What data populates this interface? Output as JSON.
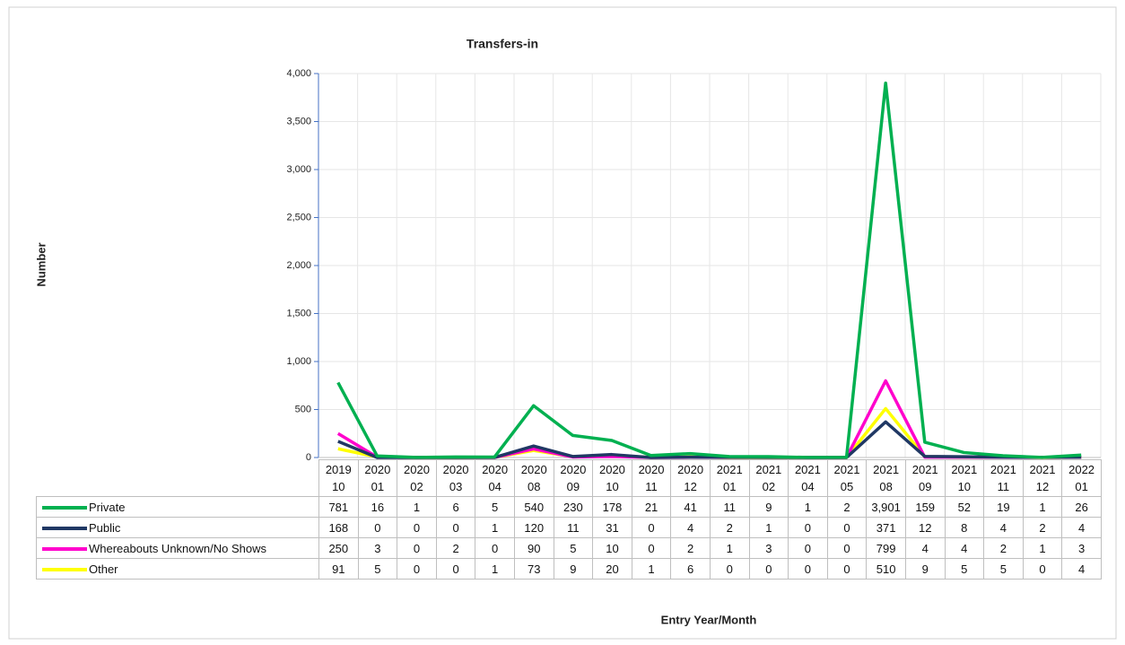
{
  "chart_data": {
    "type": "line",
    "title": "Transfers-in",
    "y_label": "Number",
    "x_label": "Entry Year/Month",
    "categories": [
      "2019 10",
      "2020 01",
      "2020 02",
      "2020 03",
      "2020 04",
      "2020 08",
      "2020 09",
      "2020 10",
      "2020 11",
      "2020 12",
      "2021 01",
      "2021 02",
      "2021 04",
      "2021 05",
      "2021 08",
      "2021 09",
      "2021 10",
      "2021 11",
      "2021 12",
      "2022 01"
    ],
    "series": [
      {
        "name": "Private",
        "color": "#00b050",
        "values": [
          781,
          16,
          1,
          6,
          5,
          540,
          230,
          178,
          21,
          41,
          11,
          9,
          1,
          2,
          3901,
          159,
          52,
          19,
          1,
          26
        ],
        "value_labels": [
          "781",
          "16",
          "1",
          "6",
          "5",
          "540",
          "230",
          "178",
          "21",
          "41",
          "11",
          "9",
          "1",
          "2",
          "3,901",
          "159",
          "52",
          "19",
          "1",
          "26"
        ]
      },
      {
        "name": "Public",
        "color": "#203864",
        "values": [
          168,
          0,
          0,
          0,
          1,
          120,
          11,
          31,
          0,
          4,
          2,
          1,
          0,
          0,
          371,
          12,
          8,
          4,
          2,
          4
        ]
      },
      {
        "name": "Whereabouts Unknown/No Shows",
        "color": "#ff00cc",
        "values": [
          250,
          3,
          0,
          2,
          0,
          90,
          5,
          10,
          0,
          2,
          1,
          3,
          0,
          0,
          799,
          4,
          4,
          2,
          1,
          3
        ]
      },
      {
        "name": "Other",
        "color": "#ffff00",
        "values": [
          91,
          5,
          0,
          0,
          1,
          73,
          9,
          20,
          1,
          6,
          0,
          0,
          0,
          0,
          510,
          9,
          5,
          5,
          0,
          4
        ]
      }
    ],
    "ylim": [
      0,
      4000
    ],
    "yticks": [
      0,
      500,
      {
        "value": 1000,
        "label": "1,000"
      },
      {
        "value": 1500,
        "label": "1,500"
      },
      {
        "value": 2000,
        "label": "2,000"
      },
      {
        "value": 2500,
        "label": "2,500"
      },
      {
        "value": 3000,
        "label": "3,000"
      },
      {
        "value": 3500,
        "label": "3,500"
      },
      {
        "value": 4000,
        "label": "4,000"
      }
    ],
    "grid": true
  }
}
